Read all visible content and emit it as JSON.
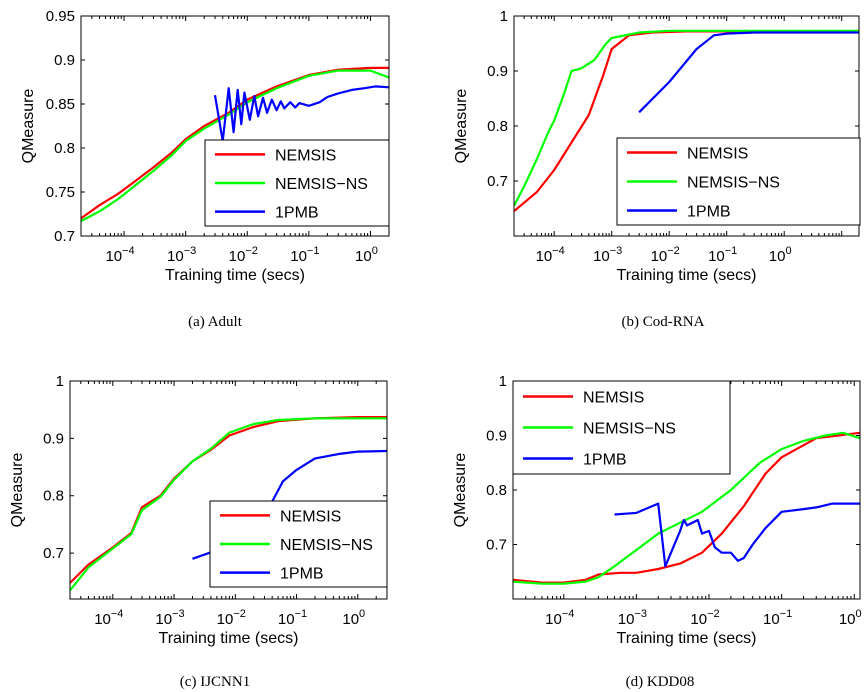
{
  "chart_data": [
    {
      "type": "line",
      "caption": "(a)  Adult",
      "xlabel": "Training time (secs)",
      "ylabel": "QMeasure",
      "x_scale": "log",
      "xlim": [
        2e-05,
        2
      ],
      "ylim": [
        0.7,
        0.95
      ],
      "yticks": [
        "0.7",
        "0.75",
        "0.8",
        "0.85",
        "0.9",
        "0.95"
      ],
      "xticks": [
        0.0001,
        0.001,
        0.01,
        0.1,
        1
      ],
      "xtick_labels": [
        {
          "base": "10",
          "exp": "−4"
        },
        {
          "base": "10",
          "exp": "−3"
        },
        {
          "base": "10",
          "exp": "−2"
        },
        {
          "base": "10",
          "exp": "−1"
        },
        {
          "base": "10",
          "exp": "0"
        }
      ],
      "legend": {
        "position": "bottom-right"
      },
      "series": [
        {
          "name": "NEMSIS",
          "color": "#ff0000",
          "points": [
            [
              2e-05,
              0.72
            ],
            [
              4e-05,
              0.735
            ],
            [
              8e-05,
              0.748
            ],
            [
              0.00015,
              0.762
            ],
            [
              0.0003,
              0.778
            ],
            [
              0.0006,
              0.795
            ],
            [
              0.001,
              0.81
            ],
            [
              0.002,
              0.825
            ],
            [
              0.005,
              0.84
            ],
            [
              0.01,
              0.855
            ],
            [
              0.03,
              0.87
            ],
            [
              0.1,
              0.883
            ],
            [
              0.3,
              0.889
            ],
            [
              1,
              0.891
            ],
            [
              2,
              0.891
            ]
          ]
        },
        {
          "name": "NEMSIS−NS",
          "color": "#00ff00",
          "points": [
            [
              2e-05,
              0.717
            ],
            [
              4e-05,
              0.728
            ],
            [
              8e-05,
              0.742
            ],
            [
              0.00015,
              0.757
            ],
            [
              0.0003,
              0.774
            ],
            [
              0.0006,
              0.792
            ],
            [
              0.001,
              0.808
            ],
            [
              0.002,
              0.822
            ],
            [
              0.005,
              0.838
            ],
            [
              0.01,
              0.852
            ],
            [
              0.03,
              0.868
            ],
            [
              0.1,
              0.882
            ],
            [
              0.3,
              0.888
            ],
            [
              1,
              0.888
            ],
            [
              2,
              0.88
            ]
          ]
        },
        {
          "name": "1PMB",
          "color": "#0000ff",
          "points": [
            [
              0.003,
              0.86
            ],
            [
              0.004,
              0.808
            ],
            [
              0.005,
              0.868
            ],
            [
              0.006,
              0.818
            ],
            [
              0.007,
              0.866
            ],
            [
              0.008,
              0.827
            ],
            [
              0.009,
              0.863
            ],
            [
              0.011,
              0.832
            ],
            [
              0.013,
              0.859
            ],
            [
              0.015,
              0.836
            ],
            [
              0.018,
              0.857
            ],
            [
              0.021,
              0.84
            ],
            [
              0.025,
              0.855
            ],
            [
              0.03,
              0.843
            ],
            [
              0.035,
              0.853
            ],
            [
              0.04,
              0.845
            ],
            [
              0.05,
              0.852
            ],
            [
              0.06,
              0.846
            ],
            [
              0.07,
              0.851
            ],
            [
              0.1,
              0.848
            ],
            [
              0.15,
              0.852
            ],
            [
              0.2,
              0.858
            ],
            [
              0.3,
              0.862
            ],
            [
              0.5,
              0.866
            ],
            [
              0.8,
              0.868
            ],
            [
              1.2,
              0.87
            ],
            [
              2,
              0.869
            ]
          ]
        }
      ]
    },
    {
      "type": "line",
      "caption": "(b)  Cod-RNA",
      "xlabel": "Training time (secs)",
      "ylabel": "QMeasure",
      "x_scale": "log",
      "xlim": [
        2e-05,
        20
      ],
      "ylim": [
        0.6,
        1
      ],
      "yticks": [
        "0.7",
        "0.8",
        "0.9",
        "1"
      ],
      "ytick_values": [
        0.7,
        0.8,
        0.9,
        1
      ],
      "xticks": [
        0.0001,
        0.001,
        0.01,
        0.1,
        1
      ],
      "xtick_labels": [
        {
          "base": "10",
          "exp": "−4"
        },
        {
          "base": "10",
          "exp": "−3"
        },
        {
          "base": "10",
          "exp": "−2"
        },
        {
          "base": "10",
          "exp": "−1"
        },
        {
          "base": "10",
          "exp": "0"
        }
      ],
      "legend": {
        "position": "bottom-right"
      },
      "series": [
        {
          "name": "NEMSIS",
          "color": "#ff0000",
          "points": [
            [
              2e-05,
              0.645
            ],
            [
              5e-05,
              0.68
            ],
            [
              0.0001,
              0.72
            ],
            [
              0.0002,
              0.77
            ],
            [
              0.0004,
              0.82
            ],
            [
              0.0007,
              0.89
            ],
            [
              0.001,
              0.94
            ],
            [
              0.002,
              0.965
            ],
            [
              0.005,
              0.97
            ],
            [
              0.02,
              0.972
            ],
            [
              0.1,
              0.972
            ],
            [
              1,
              0.972
            ],
            [
              20,
              0.972
            ]
          ]
        },
        {
          "name": "NEMSIS−NS",
          "color": "#00ff00",
          "points": [
            [
              2e-05,
              0.655
            ],
            [
              3e-05,
              0.69
            ],
            [
              5e-05,
              0.74
            ],
            [
              8e-05,
              0.79
            ],
            [
              0.0001,
              0.81
            ],
            [
              0.00015,
              0.86
            ],
            [
              0.0002,
              0.9
            ],
            [
              0.0003,
              0.905
            ],
            [
              0.0005,
              0.92
            ],
            [
              0.0008,
              0.95
            ],
            [
              0.001,
              0.96
            ],
            [
              0.003,
              0.97
            ],
            [
              0.01,
              0.973
            ],
            [
              0.1,
              0.973
            ],
            [
              1,
              0.973
            ],
            [
              20,
              0.973
            ]
          ]
        },
        {
          "name": "1PMB",
          "color": "#0000ff",
          "points": [
            [
              0.003,
              0.825
            ],
            [
              0.01,
              0.88
            ],
            [
              0.03,
              0.94
            ],
            [
              0.06,
              0.965
            ],
            [
              0.1,
              0.968
            ],
            [
              0.3,
              0.97
            ],
            [
              1,
              0.97
            ],
            [
              20,
              0.97
            ]
          ]
        }
      ]
    },
    {
      "type": "line",
      "caption": "(c)  IJCNN1",
      "xlabel": "Training time (secs)",
      "ylabel": "QMeasure",
      "x_scale": "log",
      "xlim": [
        2e-05,
        3
      ],
      "ylim": [
        0.62,
        1
      ],
      "yticks": [
        "0.7",
        "0.8",
        "0.9",
        "1"
      ],
      "ytick_values": [
        0.7,
        0.8,
        0.9,
        1
      ],
      "xticks": [
        0.0001,
        0.001,
        0.01,
        0.1,
        1
      ],
      "xtick_labels": [
        {
          "base": "10",
          "exp": "−4"
        },
        {
          "base": "10",
          "exp": "−3"
        },
        {
          "base": "10",
          "exp": "−2"
        },
        {
          "base": "10",
          "exp": "−1"
        },
        {
          "base": "10",
          "exp": "0"
        }
      ],
      "legend": {
        "position": "bottom-right"
      },
      "series": [
        {
          "name": "NEMSIS",
          "color": "#ff0000",
          "points": [
            [
              2e-05,
              0.648
            ],
            [
              4e-05,
              0.68
            ],
            [
              0.0001,
              0.71
            ],
            [
              0.0002,
              0.735
            ],
            [
              0.0003,
              0.78
            ],
            [
              0.0006,
              0.8
            ],
            [
              0.001,
              0.83
            ],
            [
              0.002,
              0.86
            ],
            [
              0.004,
              0.88
            ],
            [
              0.008,
              0.905
            ],
            [
              0.02,
              0.92
            ],
            [
              0.05,
              0.93
            ],
            [
              0.2,
              0.935
            ],
            [
              1,
              0.937
            ],
            [
              3,
              0.937
            ]
          ]
        },
        {
          "name": "NEMSIS−NS",
          "color": "#00ff00",
          "points": [
            [
              2e-05,
              0.635
            ],
            [
              4e-05,
              0.675
            ],
            [
              0.0001,
              0.708
            ],
            [
              0.0002,
              0.733
            ],
            [
              0.0003,
              0.775
            ],
            [
              0.0006,
              0.798
            ],
            [
              0.001,
              0.828
            ],
            [
              0.002,
              0.86
            ],
            [
              0.004,
              0.882
            ],
            [
              0.008,
              0.91
            ],
            [
              0.02,
              0.925
            ],
            [
              0.05,
              0.932
            ],
            [
              0.2,
              0.935
            ],
            [
              1,
              0.935
            ],
            [
              3,
              0.935
            ]
          ]
        },
        {
          "name": "1PMB",
          "color": "#0000ff",
          "points": [
            [
              0.002,
              0.69
            ],
            [
              0.005,
              0.705
            ],
            [
              0.02,
              0.77
            ],
            [
              0.04,
              0.79
            ],
            [
              0.06,
              0.825
            ],
            [
              0.1,
              0.845
            ],
            [
              0.2,
              0.865
            ],
            [
              0.5,
              0.873
            ],
            [
              1,
              0.877
            ],
            [
              3,
              0.878
            ]
          ]
        }
      ]
    },
    {
      "type": "line",
      "caption": "(d)  KDD08",
      "xlabel": "Training time (secs)",
      "ylabel": "QMeasure",
      "x_scale": "log",
      "xlim": [
        2e-05,
        1.2
      ],
      "ylim": [
        0.6,
        1
      ],
      "yticks": [
        "0.7",
        "0.8",
        "0.9",
        "1"
      ],
      "ytick_values": [
        0.7,
        0.8,
        0.9,
        1
      ],
      "xticks": [
        0.0001,
        0.001,
        0.01,
        0.1,
        1
      ],
      "xtick_labels": [
        {
          "base": "10",
          "exp": "−4"
        },
        {
          "base": "10",
          "exp": "−3"
        },
        {
          "base": "10",
          "exp": "−2"
        },
        {
          "base": "10",
          "exp": "−1"
        },
        {
          "base": "10",
          "exp": "0"
        }
      ],
      "legend": {
        "position": "top-left"
      },
      "series": [
        {
          "name": "NEMSIS",
          "color": "#ff0000",
          "points": [
            [
              2e-05,
              0.635
            ],
            [
              5e-05,
              0.63
            ],
            [
              0.0001,
              0.63
            ],
            [
              0.0002,
              0.635
            ],
            [
              0.0003,
              0.645
            ],
            [
              0.0006,
              0.648
            ],
            [
              0.001,
              0.648
            ],
            [
              0.002,
              0.655
            ],
            [
              0.004,
              0.665
            ],
            [
              0.008,
              0.685
            ],
            [
              0.015,
              0.72
            ],
            [
              0.03,
              0.77
            ],
            [
              0.06,
              0.83
            ],
            [
              0.1,
              0.86
            ],
            [
              0.3,
              0.895
            ],
            [
              0.6,
              0.9
            ],
            [
              1.2,
              0.905
            ]
          ]
        },
        {
          "name": "NEMSIS−NS",
          "color": "#00ff00",
          "points": [
            [
              2e-05,
              0.632
            ],
            [
              5e-05,
              0.628
            ],
            [
              0.0001,
              0.628
            ],
            [
              0.0002,
              0.632
            ],
            [
              0.0003,
              0.64
            ],
            [
              0.0005,
              0.66
            ],
            [
              0.001,
              0.69
            ],
            [
              0.002,
              0.72
            ],
            [
              0.004,
              0.74
            ],
            [
              0.008,
              0.76
            ],
            [
              0.02,
              0.8
            ],
            [
              0.05,
              0.85
            ],
            [
              0.1,
              0.875
            ],
            [
              0.2,
              0.89
            ],
            [
              0.4,
              0.9
            ],
            [
              0.7,
              0.905
            ],
            [
              1.2,
              0.895
            ]
          ]
        },
        {
          "name": "1PMB",
          "color": "#0000ff",
          "points": [
            [
              0.0005,
              0.755
            ],
            [
              0.001,
              0.758
            ],
            [
              0.002,
              0.775
            ],
            [
              0.0025,
              0.66
            ],
            [
              0.004,
              0.725
            ],
            [
              0.0045,
              0.745
            ],
            [
              0.005,
              0.735
            ],
            [
              0.007,
              0.745
            ],
            [
              0.008,
              0.72
            ],
            [
              0.01,
              0.725
            ],
            [
              0.012,
              0.695
            ],
            [
              0.015,
              0.685
            ],
            [
              0.02,
              0.685
            ],
            [
              0.025,
              0.67
            ],
            [
              0.03,
              0.675
            ],
            [
              0.04,
              0.7
            ],
            [
              0.06,
              0.73
            ],
            [
              0.1,
              0.76
            ],
            [
              0.2,
              0.765
            ],
            [
              0.3,
              0.768
            ],
            [
              0.5,
              0.775
            ],
            [
              1.2,
              0.775
            ]
          ]
        }
      ]
    }
  ]
}
